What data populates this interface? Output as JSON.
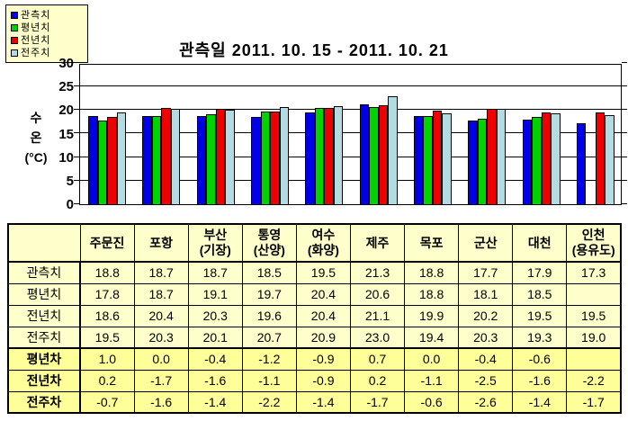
{
  "legend": {
    "items": [
      {
        "label": "관측치",
        "color": "#0000E8"
      },
      {
        "label": "평년치",
        "color": "#00D400"
      },
      {
        "label": "전년치",
        "color": "#EE0000"
      },
      {
        "label": "전주치",
        "color": "#B2DCE2"
      }
    ]
  },
  "chart_data": {
    "type": "bar",
    "title": "관측일 2011. 10. 15 -  2011. 10. 21",
    "xlabel": "",
    "ylabel": "수온 (°C)",
    "ylabel_lines": [
      "수",
      "온",
      "(°C)"
    ],
    "ylim": [
      0,
      30
    ],
    "yticks": [
      0,
      5,
      10,
      15,
      20,
      25,
      30
    ],
    "grid": true,
    "legend_position": "top-left",
    "categories": [
      "주문진",
      "포항",
      "부산(기장)",
      "통영(산양)",
      "여수(화양)",
      "제주",
      "목포",
      "군산",
      "대천",
      "인천(용유도)"
    ],
    "series": [
      {
        "name": "관측치",
        "color": "#0000E8",
        "values": [
          18.8,
          18.7,
          18.7,
          18.5,
          19.5,
          21.3,
          18.8,
          17.7,
          17.9,
          17.3
        ]
      },
      {
        "name": "평년치",
        "color": "#00D400",
        "values": [
          17.8,
          18.7,
          19.1,
          19.7,
          20.4,
          20.6,
          18.8,
          18.1,
          18.5,
          null
        ]
      },
      {
        "name": "전년치",
        "color": "#EE0000",
        "values": [
          18.6,
          20.4,
          20.3,
          19.6,
          20.4,
          21.1,
          19.9,
          20.2,
          19.5,
          19.5
        ]
      },
      {
        "name": "전주치",
        "color": "#B2DCE2",
        "values": [
          19.5,
          20.3,
          20.1,
          20.7,
          20.9,
          23.0,
          19.4,
          20.3,
          19.3,
          19.0
        ]
      }
    ]
  },
  "table": {
    "corner_label": "",
    "columns": [
      {
        "lines": [
          "주문진"
        ]
      },
      {
        "lines": [
          "포항"
        ]
      },
      {
        "lines": [
          "부산",
          "(기장)"
        ]
      },
      {
        "lines": [
          "통영",
          "(산양)"
        ]
      },
      {
        "lines": [
          "여수",
          "(화양)"
        ]
      },
      {
        "lines": [
          "제주"
        ]
      },
      {
        "lines": [
          "목포"
        ]
      },
      {
        "lines": [
          "군산"
        ]
      },
      {
        "lines": [
          "대천"
        ]
      },
      {
        "lines": [
          "인천",
          "(용유도)"
        ]
      }
    ],
    "rows": [
      {
        "label": "관측치",
        "bold": false,
        "band": "light",
        "values": [
          "18.8",
          "18.7",
          "18.7",
          "18.5",
          "19.5",
          "21.3",
          "18.8",
          "17.7",
          "17.9",
          "17.3"
        ]
      },
      {
        "label": "평년치",
        "bold": false,
        "band": "light",
        "values": [
          "17.8",
          "18.7",
          "19.1",
          "19.7",
          "20.4",
          "20.6",
          "18.8",
          "18.1",
          "18.5",
          ""
        ]
      },
      {
        "label": "전년치",
        "bold": false,
        "band": "light",
        "values": [
          "18.6",
          "20.4",
          "20.3",
          "19.6",
          "20.4",
          "21.1",
          "19.9",
          "20.2",
          "19.5",
          "19.5"
        ]
      },
      {
        "label": "전주치",
        "bold": false,
        "band": "light",
        "values": [
          "19.5",
          "20.3",
          "20.1",
          "20.7",
          "20.9",
          "23.0",
          "19.4",
          "20.3",
          "19.3",
          "19.0"
        ]
      },
      {
        "label": "평년차",
        "bold": true,
        "band": "deep",
        "values": [
          "1.0",
          "0.0",
          "-0.4",
          "-1.2",
          "-0.9",
          "0.7",
          "0.0",
          "-0.4",
          "-0.6",
          ""
        ]
      },
      {
        "label": "전년차",
        "bold": true,
        "band": "deep",
        "values": [
          "0.2",
          "-1.7",
          "-1.6",
          "-1.1",
          "-0.9",
          "0.2",
          "-1.1",
          "-2.5",
          "-1.6",
          "-2.2"
        ]
      },
      {
        "label": "전주차",
        "bold": true,
        "band": "deep",
        "values": [
          "-0.7",
          "-1.6",
          "-1.4",
          "-2.2",
          "-1.4",
          "-1.7",
          "-0.6",
          "-2.6",
          "-1.4",
          "-1.7"
        ]
      }
    ]
  },
  "colors": {
    "table_band_light": "#FFFFCC",
    "table_band_deep": "#FFFF99",
    "legend_bg": "#FFFFCC",
    "axis": "#000000"
  }
}
